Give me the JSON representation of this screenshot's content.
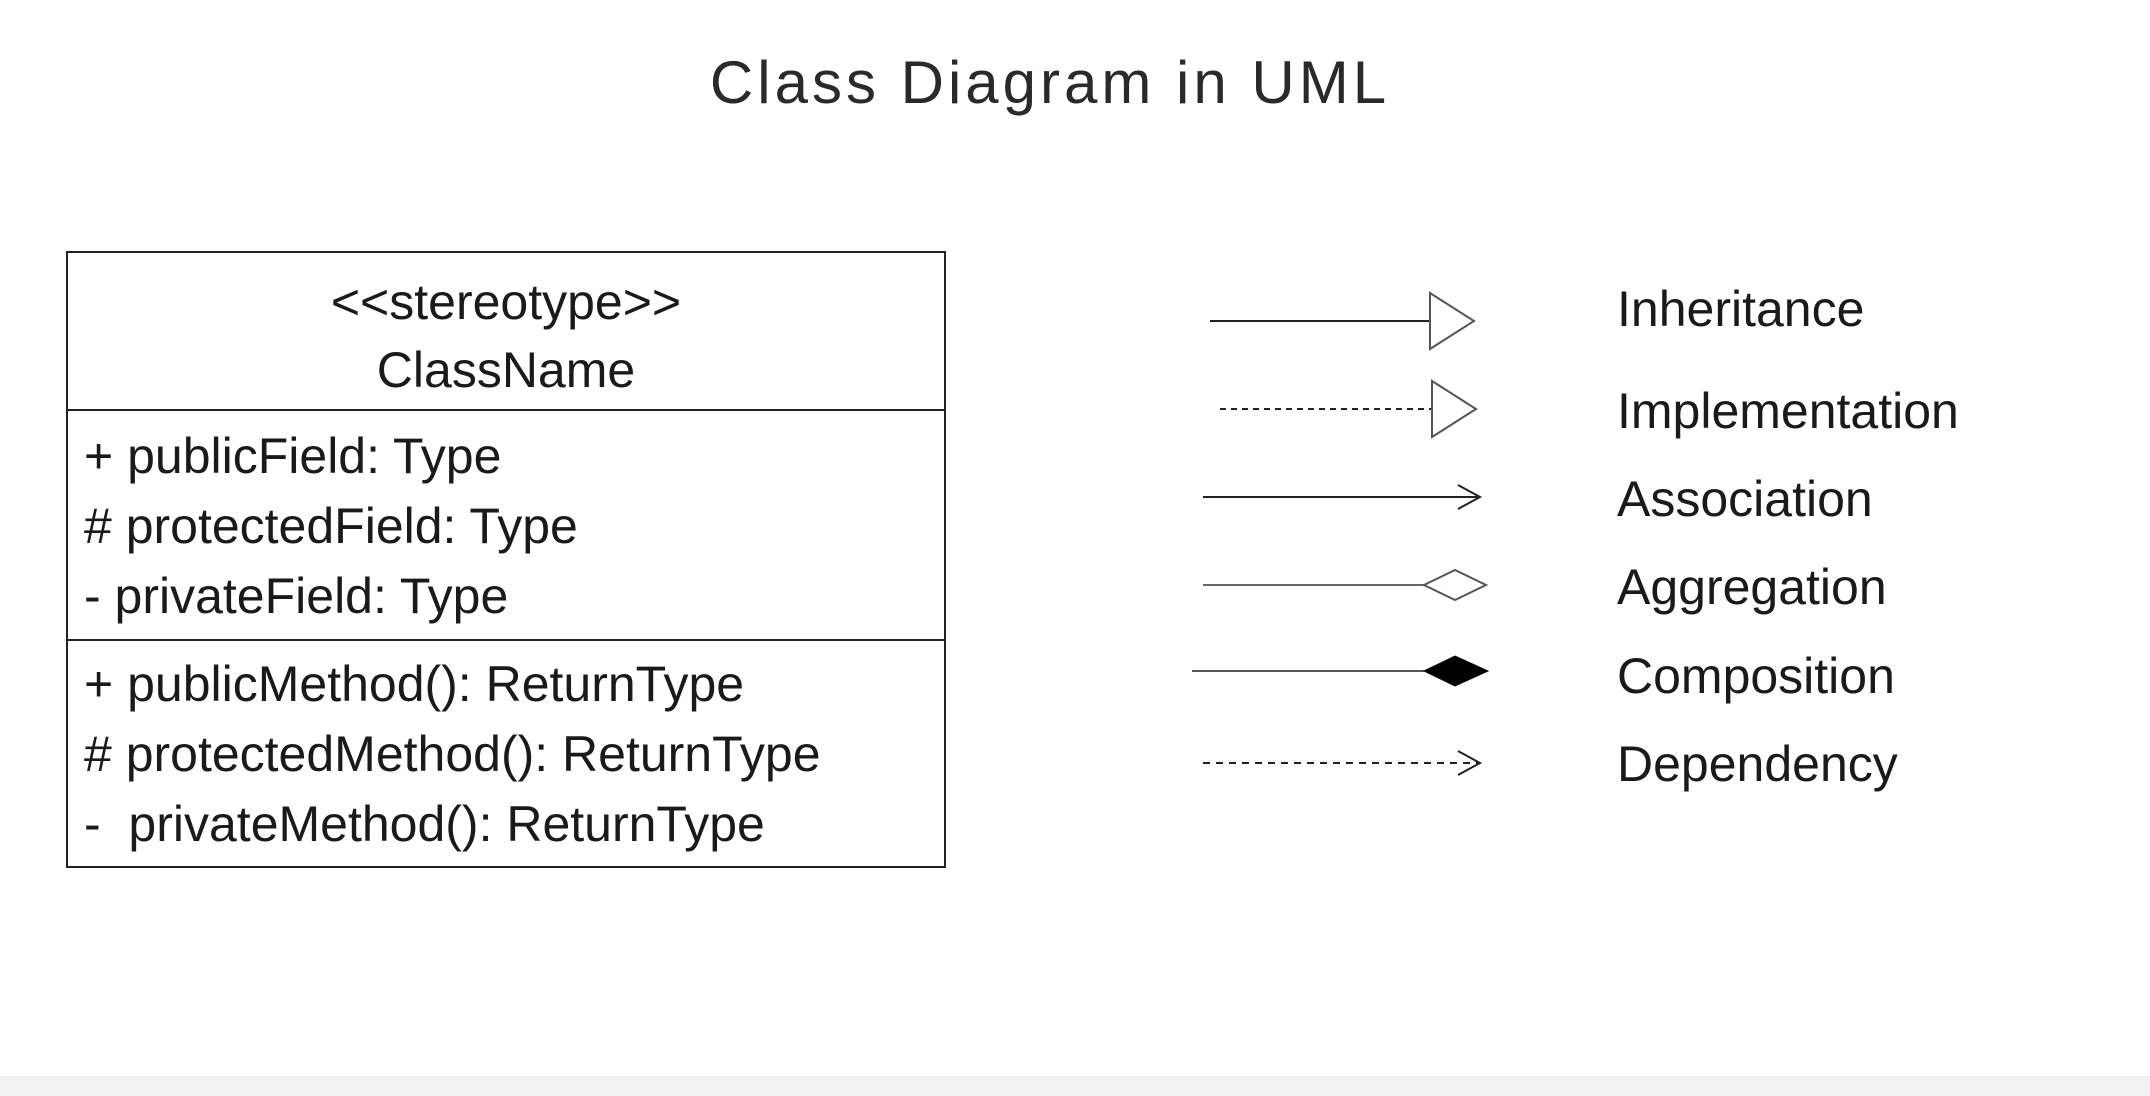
{
  "title": "Class Diagram in UML",
  "class_box": {
    "stereotype": "<<stereotype>>",
    "class_name": "ClassName",
    "fields": [
      "+ publicField: Type",
      "# protectedField: Type",
      "- privateField: Type"
    ],
    "methods": [
      "+ publicMethod(): ReturnType",
      "# protectedMethod(): ReturnType",
      "-  privateMethod(): ReturnType"
    ]
  },
  "legend": [
    {
      "label": "Inheritance",
      "line": "solid",
      "head": "hollow-triangle"
    },
    {
      "label": "Implementation",
      "line": "dashed",
      "head": "hollow-triangle"
    },
    {
      "label": "Association",
      "line": "solid",
      "head": "open-arrow"
    },
    {
      "label": "Aggregation",
      "line": "solid",
      "head": "hollow-diamond"
    },
    {
      "label": "Composition",
      "line": "solid",
      "head": "filled-diamond"
    },
    {
      "label": "Dependency",
      "line": "dashed",
      "head": "open-arrow"
    }
  ]
}
